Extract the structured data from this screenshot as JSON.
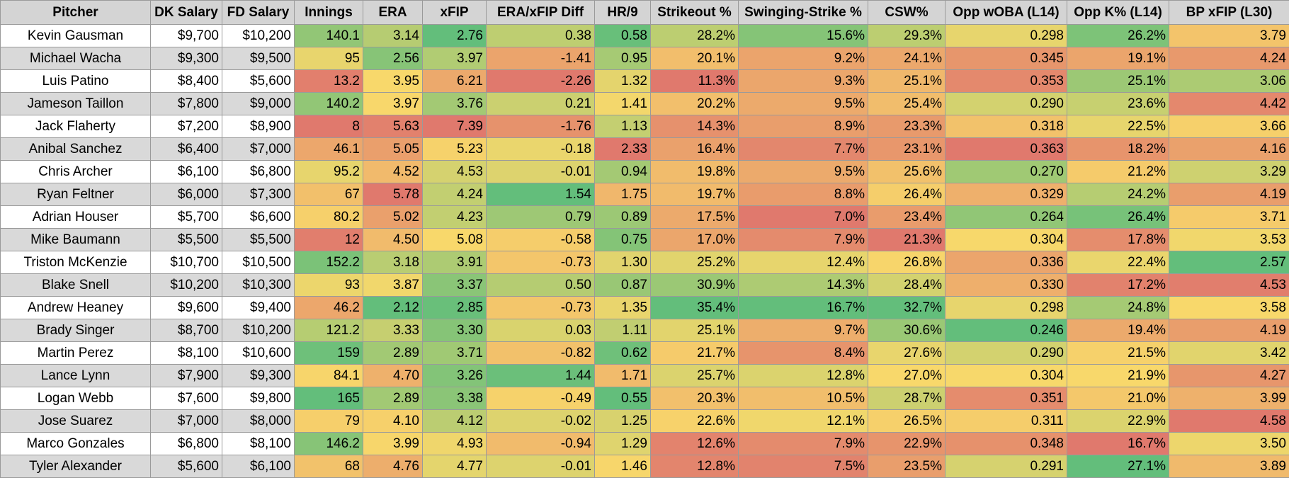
{
  "table": {
    "headers": [
      "Pitcher",
      "DK Salary",
      "FD Salary",
      "Innings",
      "ERA",
      "xFIP",
      "ERA/xFIP Diff",
      "HR/9",
      "Strikeout %",
      "Swinging-Strike %",
      "CSW%",
      "Opp wOBA (L14)",
      "Opp K% (L14)",
      "BP xFIP (L30)"
    ],
    "rows": [
      [
        "Kevin Gausman",
        "$9,700",
        "$10,200",
        "140.1",
        "3.14",
        "2.76",
        "0.38",
        "0.58",
        "28.2%",
        "15.6%",
        "29.3%",
        "0.298",
        "26.2%",
        "3.79"
      ],
      [
        "Michael Wacha",
        "$9,300",
        "$9,500",
        "95",
        "2.56",
        "3.97",
        "-1.41",
        "0.95",
        "20.1%",
        "9.2%",
        "24.1%",
        "0.345",
        "19.1%",
        "4.24"
      ],
      [
        "Luis Patino",
        "$8,400",
        "$5,600",
        "13.2",
        "3.95",
        "6.21",
        "-2.26",
        "1.32",
        "11.3%",
        "9.3%",
        "25.1%",
        "0.353",
        "25.1%",
        "3.06"
      ],
      [
        "Jameson Taillon",
        "$7,800",
        "$9,000",
        "140.2",
        "3.97",
        "3.76",
        "0.21",
        "1.41",
        "20.2%",
        "9.5%",
        "25.4%",
        "0.290",
        "23.6%",
        "4.42"
      ],
      [
        "Jack Flaherty",
        "$7,200",
        "$8,900",
        "8",
        "5.63",
        "7.39",
        "-1.76",
        "1.13",
        "14.3%",
        "8.9%",
        "23.3%",
        "0.318",
        "22.5%",
        "3.66"
      ],
      [
        "Anibal Sanchez",
        "$6,400",
        "$7,000",
        "46.1",
        "5.05",
        "5.23",
        "-0.18",
        "2.33",
        "16.4%",
        "7.7%",
        "23.1%",
        "0.363",
        "18.2%",
        "4.16"
      ],
      [
        "Chris Archer",
        "$6,100",
        "$6,800",
        "95.2",
        "4.52",
        "4.53",
        "-0.01",
        "0.94",
        "19.8%",
        "9.5%",
        "25.6%",
        "0.270",
        "21.2%",
        "3.29"
      ],
      [
        "Ryan Feltner",
        "$6,000",
        "$7,300",
        "67",
        "5.78",
        "4.24",
        "1.54",
        "1.75",
        "19.7%",
        "8.8%",
        "26.4%",
        "0.329",
        "24.2%",
        "4.19"
      ],
      [
        "Adrian Houser",
        "$5,700",
        "$6,600",
        "80.2",
        "5.02",
        "4.23",
        "0.79",
        "0.89",
        "17.5%",
        "7.0%",
        "23.4%",
        "0.264",
        "26.4%",
        "3.71"
      ],
      [
        "Mike Baumann",
        "$5,500",
        "$5,500",
        "12",
        "4.50",
        "5.08",
        "-0.58",
        "0.75",
        "17.0%",
        "7.9%",
        "21.3%",
        "0.304",
        "17.8%",
        "3.53"
      ],
      [
        "Triston McKenzie",
        "$10,700",
        "$10,500",
        "152.2",
        "3.18",
        "3.91",
        "-0.73",
        "1.30",
        "25.2%",
        "12.4%",
        "26.8%",
        "0.336",
        "22.4%",
        "2.57"
      ],
      [
        "Blake Snell",
        "$10,200",
        "$10,300",
        "93",
        "3.87",
        "3.37",
        "0.50",
        "0.87",
        "30.9%",
        "14.3%",
        "28.4%",
        "0.330",
        "17.2%",
        "4.53"
      ],
      [
        "Andrew Heaney",
        "$9,600",
        "$9,400",
        "46.2",
        "2.12",
        "2.85",
        "-0.73",
        "1.35",
        "35.4%",
        "16.7%",
        "32.7%",
        "0.298",
        "24.8%",
        "3.58"
      ],
      [
        "Brady Singer",
        "$8,700",
        "$10,200",
        "121.2",
        "3.33",
        "3.30",
        "0.03",
        "1.11",
        "25.1%",
        "9.7%",
        "30.6%",
        "0.246",
        "19.4%",
        "4.19"
      ],
      [
        "Martin Perez",
        "$8,100",
        "$10,600",
        "159",
        "2.89",
        "3.71",
        "-0.82",
        "0.62",
        "21.7%",
        "8.4%",
        "27.6%",
        "0.290",
        "21.5%",
        "3.42"
      ],
      [
        "Lance Lynn",
        "$7,900",
        "$9,300",
        "84.1",
        "4.70",
        "3.26",
        "1.44",
        "1.71",
        "25.7%",
        "12.8%",
        "27.0%",
        "0.304",
        "21.9%",
        "4.27"
      ],
      [
        "Logan Webb",
        "$7,600",
        "$9,800",
        "165",
        "2.89",
        "3.38",
        "-0.49",
        "0.55",
        "20.3%",
        "10.5%",
        "28.7%",
        "0.351",
        "21.0%",
        "3.99"
      ],
      [
        "Jose Suarez",
        "$7,000",
        "$8,000",
        "79",
        "4.10",
        "4.12",
        "-0.02",
        "1.25",
        "22.6%",
        "12.1%",
        "26.5%",
        "0.311",
        "22.9%",
        "4.58"
      ],
      [
        "Marco Gonzales",
        "$6,800",
        "$8,100",
        "146.2",
        "3.99",
        "4.93",
        "-0.94",
        "1.29",
        "12.6%",
        "7.9%",
        "22.9%",
        "0.348",
        "16.7%",
        "3.50"
      ],
      [
        "Tyler Alexander",
        "$5,600",
        "$6,100",
        "68",
        "4.76",
        "4.77",
        "-0.01",
        "1.46",
        "12.8%",
        "7.5%",
        "23.5%",
        "0.291",
        "27.1%",
        "3.89"
      ]
    ],
    "color_scale": {
      "high_good_columns": [
        3,
        8,
        9,
        10,
        12
      ],
      "low_good_columns": [
        4,
        5,
        7,
        11,
        13
      ],
      "diff_column": 6,
      "good": "#63be7b",
      "mid": "#f8d86b",
      "bad": "#e0796d"
    }
  }
}
